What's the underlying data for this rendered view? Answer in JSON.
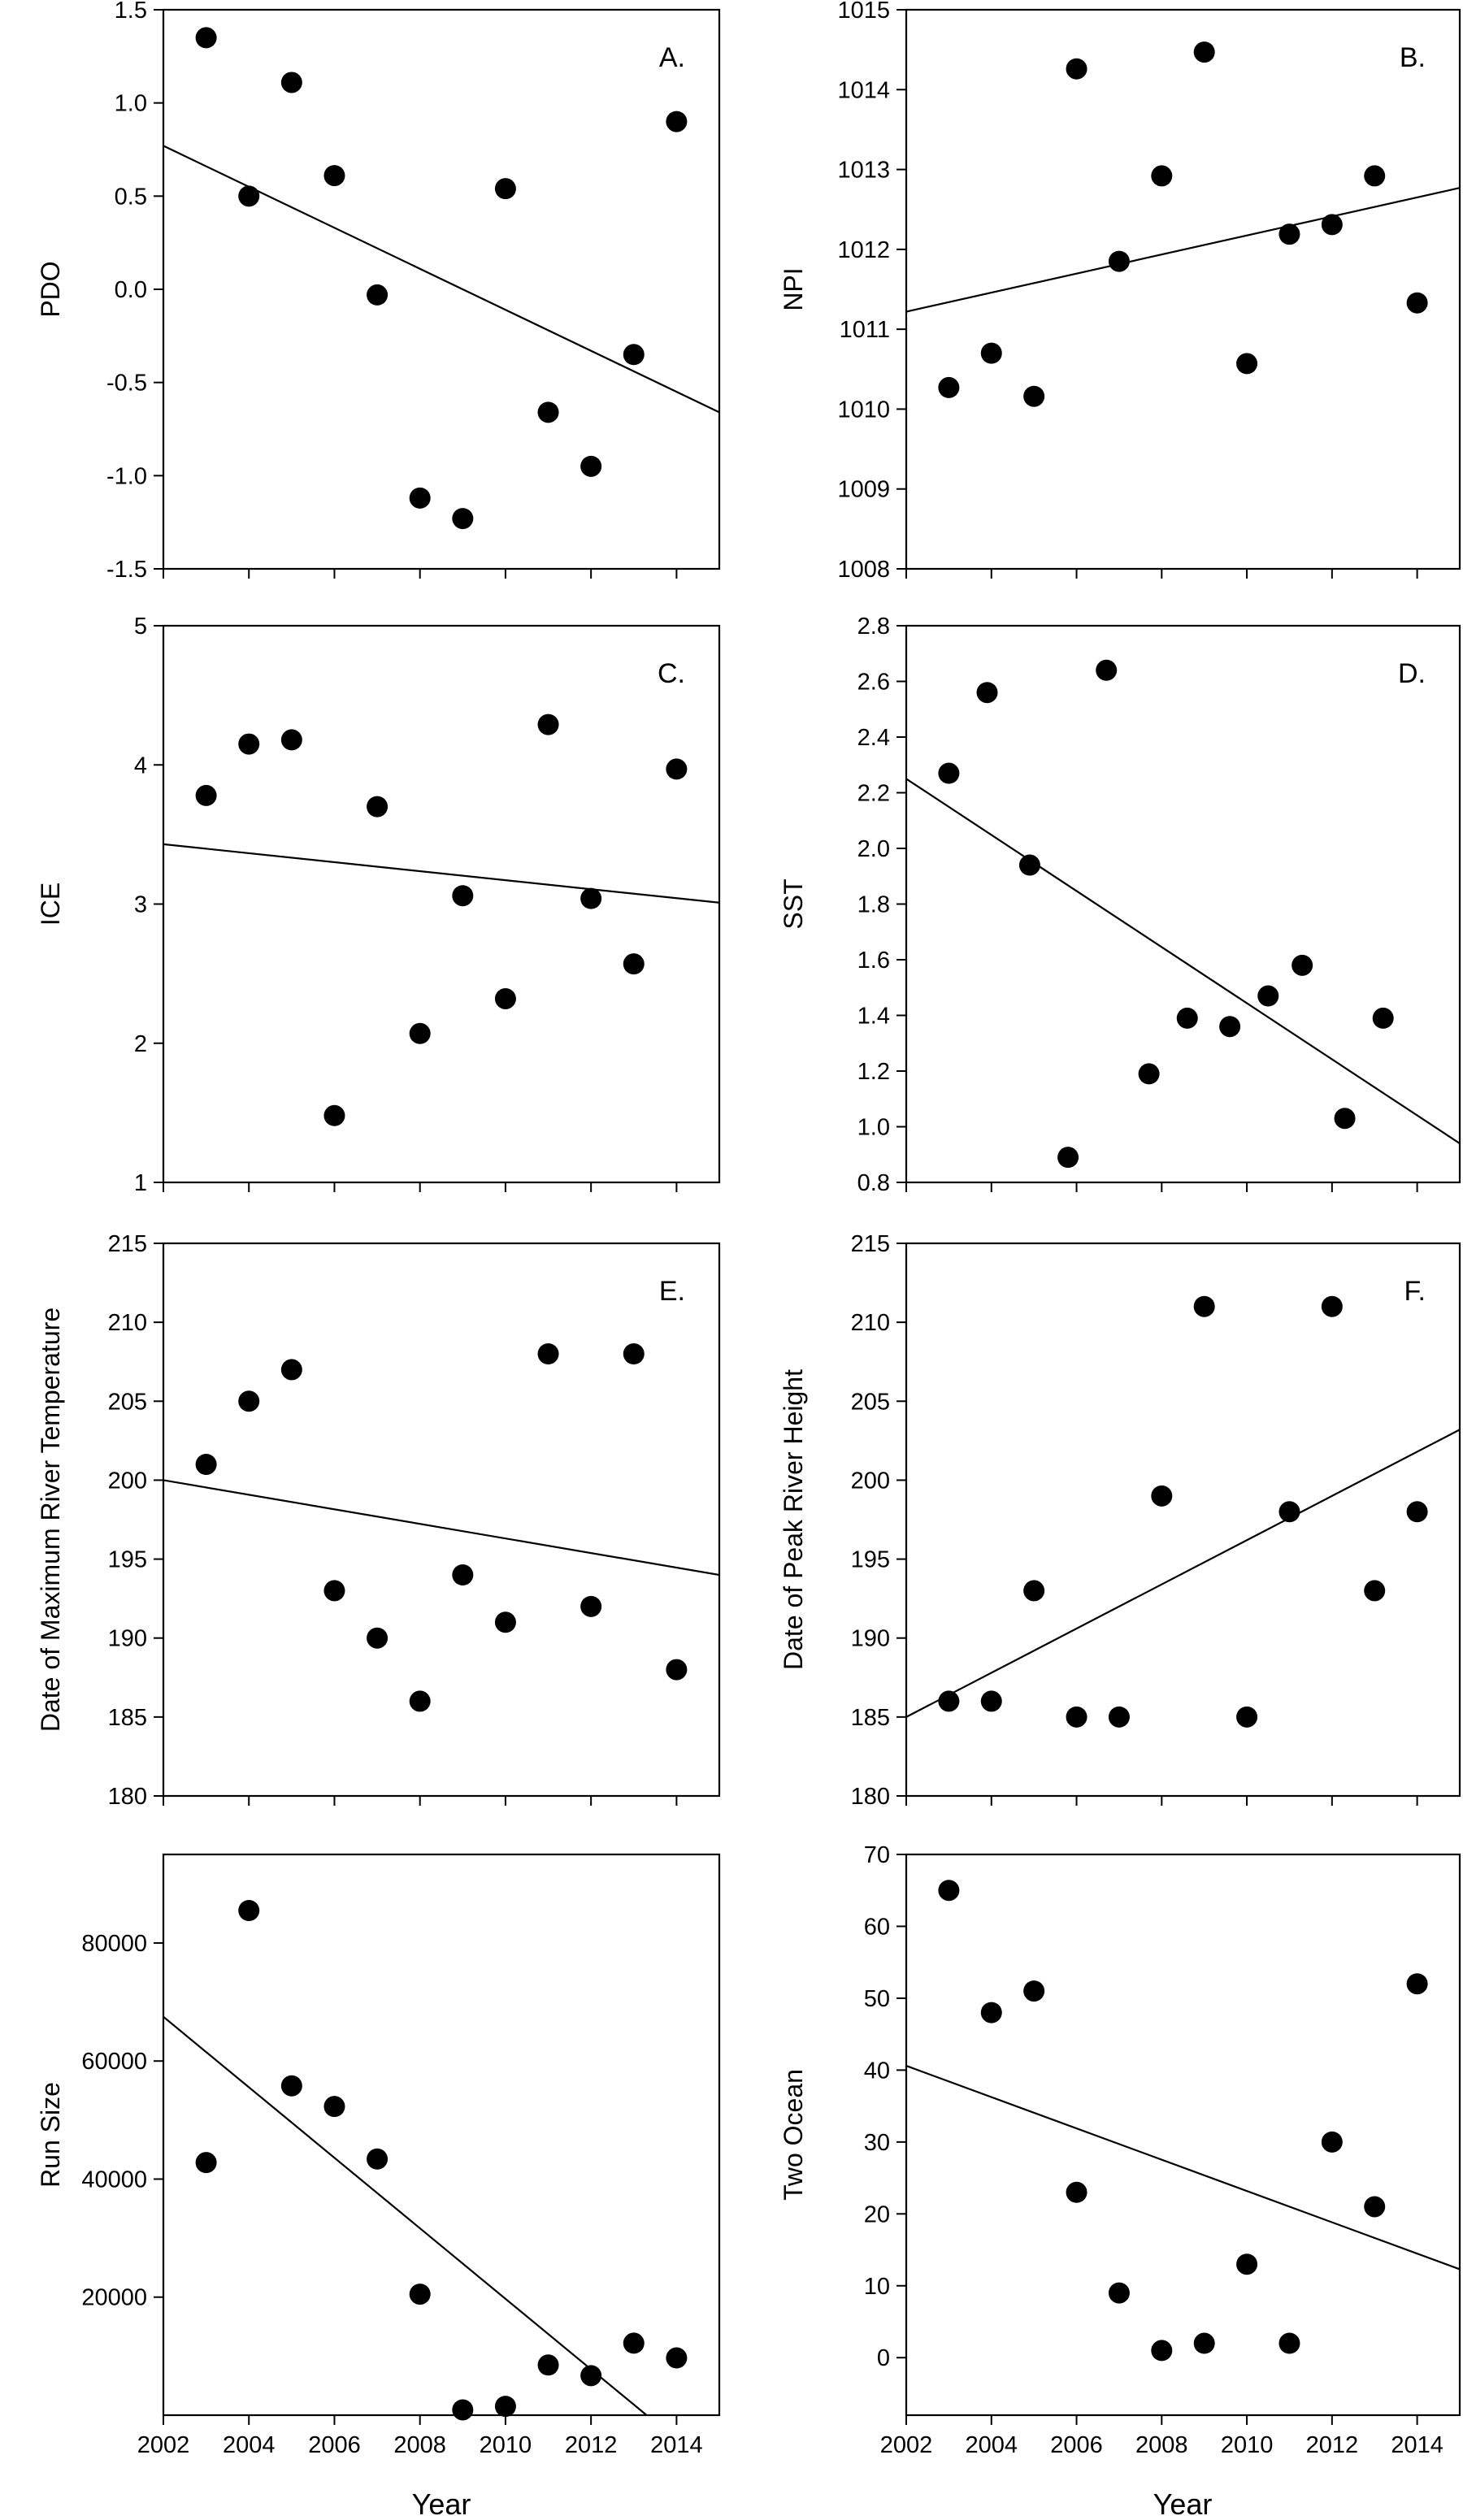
{
  "figure": {
    "xlabel": "Year",
    "x_ticks": [
      2002,
      2004,
      2006,
      2008,
      2010,
      2012,
      2014
    ]
  },
  "chart_data": [
    {
      "type": "scatter",
      "panel": "A.",
      "ylabel": "PDO",
      "xlim": [
        2002,
        2015
      ],
      "ylim": [
        -1.5,
        1.5
      ],
      "y_ticks": [
        1.5,
        1.0,
        0.5,
        0.0,
        -0.5,
        -1.0,
        -1.5
      ],
      "y_tick_labels": [
        "1.5",
        "1.0",
        "0.5",
        "0.0",
        "-0.5",
        "-1.0",
        "-1.5"
      ],
      "x": [
        2003,
        2004,
        2005,
        2006,
        2007,
        2008,
        2009,
        2010,
        2011,
        2012,
        2013,
        2014
      ],
      "y": [
        1.35,
        0.5,
        1.11,
        0.61,
        -0.03,
        -1.12,
        -1.23,
        0.54,
        -0.66,
        -0.95,
        -0.35,
        0.9
      ],
      "trend": [
        [
          2002,
          0.77
        ],
        [
          2015,
          -0.66
        ]
      ]
    },
    {
      "type": "scatter",
      "panel": "B.",
      "ylabel": "NPI",
      "xlim": [
        2002,
        2015
      ],
      "ylim": [
        1008,
        1015
      ],
      "y_ticks": [
        1015,
        1014,
        1013,
        1012,
        1011,
        1010,
        1009,
        1008
      ],
      "y_tick_labels": [
        "1015",
        "1014",
        "1013",
        "1012",
        "1011",
        "1010",
        "1009",
        "1008"
      ],
      "x": [
        2003,
        2004,
        2005,
        2006,
        2007,
        2008,
        2009,
        2010,
        2011,
        2012,
        2013,
        2014
      ],
      "y": [
        1010.27,
        1010.7,
        1010.16,
        1014.26,
        1011.85,
        1012.92,
        1014.47,
        1010.57,
        1012.19,
        1012.31,
        1012.92,
        1011.33
      ],
      "trend": [
        [
          2002,
          1011.22
        ],
        [
          2015,
          1012.77
        ]
      ]
    },
    {
      "type": "scatter",
      "panel": "C.",
      "ylabel": "ICE",
      "xlim": [
        2002,
        2015
      ],
      "ylim": [
        1,
        5
      ],
      "y_ticks": [
        5,
        4,
        3,
        2,
        1
      ],
      "y_tick_labels": [
        "5",
        "4",
        "3",
        "2",
        "1"
      ],
      "x": [
        2003,
        2004,
        2005,
        2006,
        2007,
        2008,
        2009,
        2010,
        2011,
        2012,
        2013,
        2014
      ],
      "y": [
        3.78,
        4.15,
        4.18,
        1.48,
        3.7,
        2.07,
        3.06,
        2.32,
        4.29,
        3.04,
        2.57,
        3.97
      ],
      "trend": [
        [
          2002,
          3.43
        ],
        [
          2015,
          3.01
        ]
      ]
    },
    {
      "type": "scatter",
      "panel": "D.",
      "ylabel": "SST",
      "xlim": [
        2002,
        2015
      ],
      "ylim": [
        0.8,
        2.8
      ],
      "y_ticks": [
        2.8,
        2.6,
        2.4,
        2.2,
        2.0,
        1.8,
        1.6,
        1.4,
        1.2,
        1.0,
        0.8
      ],
      "y_tick_labels": [
        "2.8",
        "2.6",
        "2.4",
        "2.2",
        "2.0",
        "1.8",
        "1.6",
        "1.4",
        "1.2",
        "1.0",
        "0.8"
      ],
      "x": [
        2003,
        2003.9,
        2004.9,
        2005.8,
        2006.7,
        2007.7,
        2008.6,
        2009.6,
        2010.5,
        2011.3,
        2012.3,
        2013.2
      ],
      "y": [
        2.27,
        2.56,
        1.94,
        0.89,
        2.64,
        1.19,
        1.39,
        1.36,
        1.47,
        1.58,
        1.03,
        1.39
      ],
      "trend": [
        [
          2002,
          2.25
        ],
        [
          2015,
          0.94
        ]
      ]
    },
    {
      "type": "scatter",
      "panel": "E.",
      "ylabel": "Date of Maximum River Temperature",
      "xlim": [
        2002,
        2015
      ],
      "ylim": [
        180,
        215
      ],
      "y_ticks": [
        215,
        210,
        205,
        200,
        195,
        190,
        185,
        180
      ],
      "y_tick_labels": [
        "215",
        "210",
        "205",
        "200",
        "195",
        "190",
        "185",
        "180"
      ],
      "x": [
        2003,
        2004,
        2005,
        2006,
        2007,
        2008,
        2009,
        2010,
        2011,
        2012,
        2013,
        2014
      ],
      "y": [
        201,
        205,
        207,
        193,
        190,
        186,
        194,
        191,
        208,
        192,
        208,
        188
      ],
      "trend": [
        [
          2002,
          200
        ],
        [
          2015,
          194
        ]
      ]
    },
    {
      "type": "scatter",
      "panel": "F.",
      "ylabel": "Date of Peak River Height",
      "xlim": [
        2002,
        2015
      ],
      "ylim": [
        180,
        215
      ],
      "y_ticks": [
        215,
        210,
        205,
        200,
        195,
        190,
        185,
        180
      ],
      "y_tick_labels": [
        "215",
        "210",
        "205",
        "200",
        "195",
        "190",
        "185",
        "180"
      ],
      "x": [
        2003,
        2004,
        2005,
        2006,
        2007,
        2008,
        2009,
        2010,
        2011,
        2012,
        2013,
        2014
      ],
      "y": [
        186,
        186,
        193,
        185,
        185,
        199,
        211,
        185,
        198,
        211,
        193,
        198
      ],
      "trend": [
        [
          2002,
          185
        ],
        [
          2015,
          203.2
        ]
      ]
    },
    {
      "type": "scatter",
      "panel": "",
      "ylabel": "Run Size",
      "xlim": [
        2002,
        2015
      ],
      "ylim": [
        0,
        95000
      ],
      "y_ticks": [
        80000,
        60000,
        40000,
        20000
      ],
      "y_tick_labels": [
        "80000",
        "60000",
        "40000",
        "20000"
      ],
      "x": [
        2003,
        2004,
        2005,
        2006,
        2007,
        2008,
        2009,
        2010,
        2011,
        2012,
        2013,
        2014
      ],
      "y": [
        42800,
        85500,
        55800,
        52300,
        43400,
        20500,
        900,
        1500,
        8500,
        6700,
        12200,
        9700
      ],
      "trend": [
        [
          2002,
          67500
        ],
        [
          2013.3,
          0
        ]
      ]
    },
    {
      "type": "scatter",
      "panel": "",
      "ylabel": "Two Ocean",
      "xlim": [
        2002,
        2015
      ],
      "ylim": [
        -8,
        70
      ],
      "y_ticks": [
        70,
        60,
        50,
        40,
        30,
        20,
        10,
        0
      ],
      "y_tick_labels": [
        "70",
        "60",
        "50",
        "40",
        "30",
        "20",
        "10",
        "0"
      ],
      "x": [
        2003,
        2004,
        2005,
        2006,
        2007,
        2008,
        2009,
        2010,
        2011,
        2012,
        2013,
        2014
      ],
      "y": [
        65,
        48,
        51,
        23,
        9,
        1,
        2,
        13,
        2,
        30,
        21,
        52
      ],
      "trend": [
        [
          2002,
          40.6
        ],
        [
          2015,
          12.3
        ]
      ]
    }
  ]
}
